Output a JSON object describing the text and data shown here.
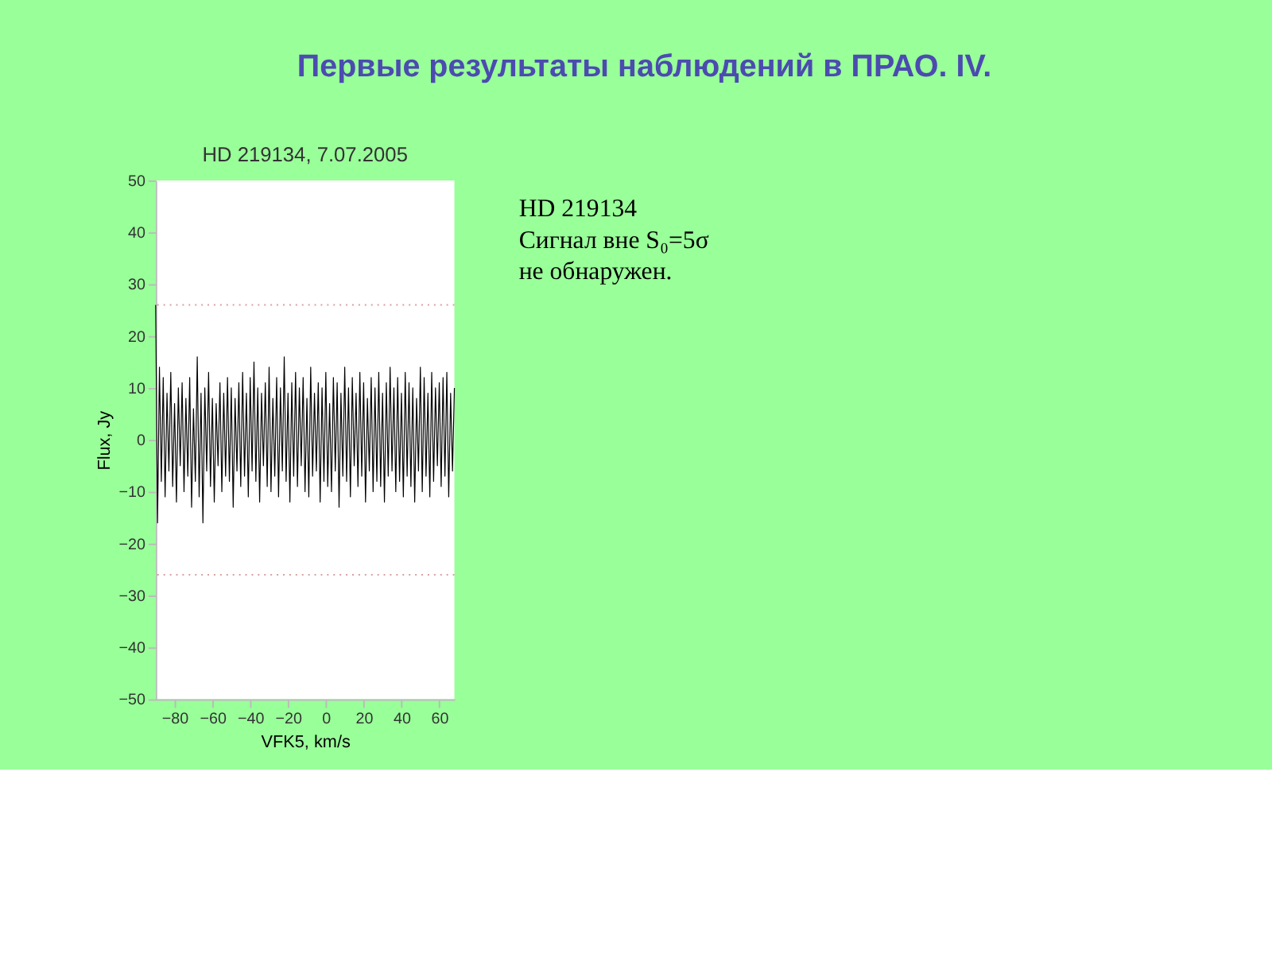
{
  "chart_data": {
    "type": "line",
    "title": "HD 219134, 7.07.2005",
    "xlabel": "VFK5, km/s",
    "ylabel": "Flux, Jy",
    "x": [
      -90,
      -89,
      -88,
      -87,
      -86,
      -85,
      -84,
      -83,
      -82,
      -81,
      -80,
      -79,
      -78,
      -77,
      -76,
      -75,
      -74,
      -73,
      -72,
      -71,
      -70,
      -69,
      -68,
      -67,
      -66,
      -65,
      -64,
      -63,
      -62,
      -61,
      -60,
      -59,
      -58,
      -57,
      -56,
      -55,
      -54,
      -53,
      -52,
      -51,
      -50,
      -49,
      -48,
      -47,
      -46,
      -45,
      -44,
      -43,
      -42,
      -41,
      -40,
      -39,
      -38,
      -37,
      -36,
      -35,
      -34,
      -33,
      -32,
      -31,
      -30,
      -29,
      -28,
      -27,
      -26,
      -25,
      -24,
      -23,
      -22,
      -21,
      -20,
      -19,
      -18,
      -17,
      -16,
      -15,
      -14,
      -13,
      -12,
      -11,
      -10,
      -9,
      -8,
      -7,
      -6,
      -5,
      -4,
      -3,
      -2,
      -1,
      0,
      1,
      2,
      3,
      4,
      5,
      6,
      7,
      8,
      9,
      10,
      11,
      12,
      13,
      14,
      15,
      16,
      17,
      18,
      19,
      20,
      21,
      22,
      23,
      24,
      25,
      26,
      27,
      28,
      29,
      30,
      31,
      32,
      33,
      34,
      35,
      36,
      37,
      38,
      39,
      40,
      41,
      42,
      43,
      44,
      45,
      46,
      47,
      48,
      49,
      50,
      51,
      52,
      53,
      54,
      55,
      56,
      57,
      58,
      59,
      60,
      61,
      62,
      63,
      64,
      65,
      66,
      67,
      68
    ],
    "series": [
      {
        "color": "#000000",
        "values": [
          26,
          -16,
          14,
          -8,
          12,
          -11,
          9,
          -6,
          13,
          -9,
          7,
          -12,
          10,
          -5,
          11,
          -10,
          8,
          -7,
          12,
          -13,
          6,
          -8,
          16,
          -11,
          9,
          -16,
          10,
          -6,
          13,
          -9,
          8,
          -12,
          7,
          -5,
          11,
          -10,
          9,
          -7,
          12,
          -8,
          10,
          -13,
          8,
          -6,
          11,
          -9,
          13,
          -7,
          9,
          -11,
          12,
          -6,
          15,
          -8,
          10,
          -12,
          9,
          -5,
          11,
          -9,
          14,
          -10,
          8,
          -7,
          12,
          -11,
          10,
          -6,
          16,
          -8,
          9,
          -12,
          11,
          -7,
          13,
          -9,
          10,
          -5,
          12,
          -10,
          8,
          -11,
          14,
          -7,
          9,
          -6,
          11,
          -12,
          10,
          -8,
          13,
          -9,
          7,
          -10,
          12,
          -6,
          11,
          -13,
          9,
          -7,
          14,
          -8,
          10,
          -11,
          12,
          -5,
          9,
          -9,
          13,
          -7,
          11,
          -12,
          8,
          -6,
          12,
          -10,
          10,
          -8,
          13,
          -9,
          9,
          -12,
          11,
          -7,
          14,
          -6,
          10,
          -10,
          12,
          -8,
          9,
          -11,
          13,
          -7,
          11,
          -9,
          10,
          -12,
          8,
          -6,
          14,
          -10,
          12,
          -7,
          9,
          -11,
          13,
          -8,
          10,
          -5,
          11,
          -9,
          12,
          -7,
          13,
          -11,
          9,
          -6,
          10
        ]
      }
    ],
    "xlim": [
      -90,
      68
    ],
    "xticks": [
      -80,
      -60,
      -40,
      -20,
      0,
      20,
      40,
      60
    ],
    "ylim": [
      -50,
      50
    ],
    "yticks": [
      -50,
      -40,
      -30,
      -20,
      -10,
      0,
      10,
      20,
      30,
      40,
      50
    ],
    "ref_lines": [
      {
        "axis": "y",
        "value": 26,
        "color": "#d8a0a0",
        "line_style": "dotted"
      },
      {
        "axis": "y",
        "value": -26,
        "color": "#d8a0a0",
        "line_style": "dotted"
      }
    ],
    "grid": false,
    "legend": false,
    "marker": "none",
    "line_style": "solid",
    "annotations": [
      "Первые результаты наблюдений в ПРАО. IV.",
      "HD 219134",
      "Сигнал вне S₀=5σ",
      "не обнаружен."
    ]
  }
}
